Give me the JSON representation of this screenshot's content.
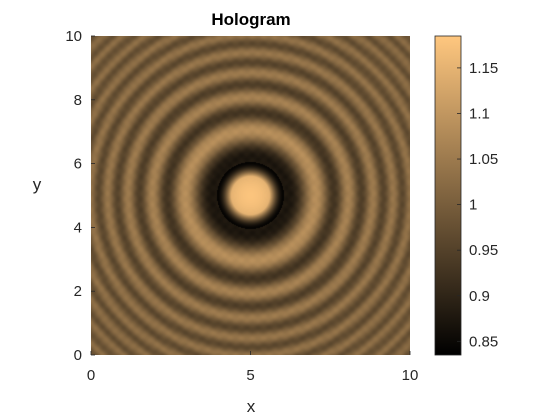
{
  "chart_data": {
    "type": "heatmap",
    "title": "Hologram",
    "xlabel": "x",
    "ylabel": "y",
    "xlim": [
      0,
      10
    ],
    "ylim": [
      0,
      10
    ],
    "x_ticks": [
      0,
      5,
      10
    ],
    "x_tick_labels": [
      "0",
      "5",
      "10"
    ],
    "y_ticks": [
      0,
      2,
      4,
      6,
      8,
      10
    ],
    "y_tick_labels": [
      "0",
      "2",
      "4",
      "6",
      "8",
      "10"
    ],
    "colormap": "copper",
    "colormap_stops": [
      "#000000",
      "#ffc77f"
    ],
    "clim": [
      0.835,
      1.185
    ],
    "colorbar_ticks": [
      0.85,
      0.9,
      0.95,
      1,
      1.05,
      1.1,
      1.15
    ],
    "colorbar_tick_labels": [
      "0.85",
      "0.9",
      "0.95",
      "1",
      "1.05",
      "1.1",
      "1.15"
    ],
    "pattern": {
      "center": [
        5,
        5
      ],
      "background_value": 1.0,
      "center_value": 1.18,
      "min_value": 0.84
    },
    "grid": false
  }
}
